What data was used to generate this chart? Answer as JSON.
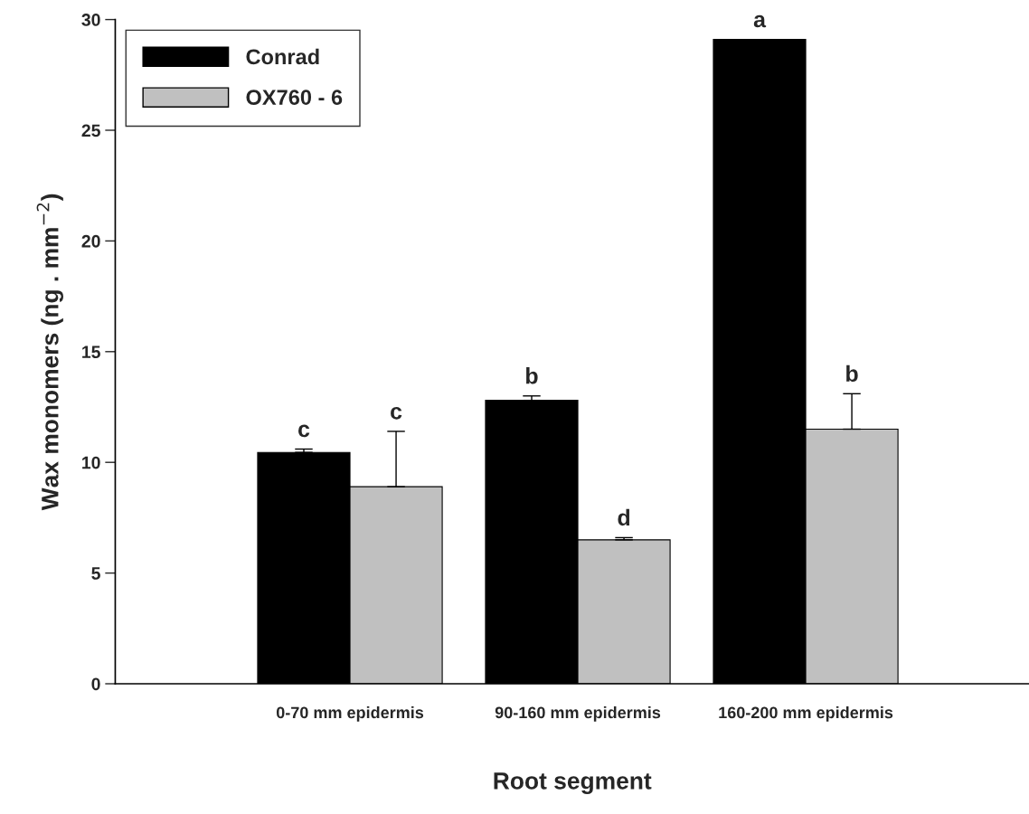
{
  "chart_data": {
    "type": "bar",
    "xlabel": "Root segment",
    "ylabel": "Wax monomers (ng . mm$^{−2}$)",
    "categories": [
      "0-70 mm epidermis",
      "90-160 mm epidermis",
      "160-200 mm epidermis"
    ],
    "series": [
      {
        "name": "Conrad",
        "color": "#000000",
        "values": [
          10.45,
          12.8,
          29.1
        ],
        "errors": [
          [
            10.45,
            10.6
          ],
          [
            12.8,
            13.0
          ],
          [
            29.1,
            29.1
          ]
        ]
      },
      {
        "name": "OX760 - 6",
        "color": "#c0c0c0",
        "values": [
          8.9,
          6.5,
          11.5
        ],
        "errors": [
          [
            8.9,
            11.4
          ],
          [
            6.5,
            6.6
          ],
          [
            11.5,
            13.1
          ]
        ]
      }
    ],
    "annotations": [
      "c",
      "c",
      "b",
      "d",
      "a",
      "b"
    ],
    "ylim": [
      0,
      30
    ],
    "yticks": [
      0,
      5,
      10,
      15,
      20,
      25,
      30
    ],
    "grid": false,
    "legend": "top left"
  }
}
